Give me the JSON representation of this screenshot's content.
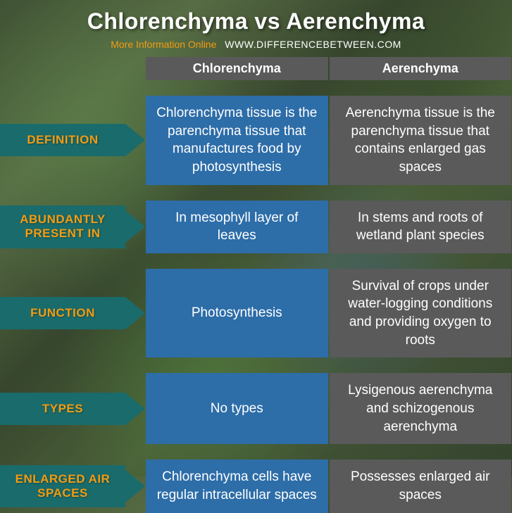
{
  "header": {
    "title": "Chlorenchyma vs Aerenchyma",
    "subtitle": "More Information Online",
    "url": "WWW.DIFFERENCEBETWEEN.COM"
  },
  "columns": {
    "col1": "Chlorenchyma",
    "col2": "Aerenchyma"
  },
  "colors": {
    "label_bg": "#1a6b6b",
    "label_text": "#f39c12",
    "col1_bg": "#2d6da8",
    "col2_bg": "#5a5a5a",
    "header_bg": "#5a5a5a"
  },
  "rows": [
    {
      "label": "DEFINITION",
      "col1": "Chlorenchyma tissue is the parenchyma tissue that manufactures food by photosynthesis",
      "col2": "Aerenchyma tissue is the parenchyma tissue that contains enlarged gas spaces"
    },
    {
      "label": "ABUNDANTLY PRESENT IN",
      "col1": "In mesophyll layer of leaves",
      "col2": "In stems and roots of wetland plant species"
    },
    {
      "label": "FUNCTION",
      "col1": "Photosynthesis",
      "col2": "Survival of crops under water-logging conditions and providing oxygen to roots"
    },
    {
      "label": "TYPES",
      "col1": "No types",
      "col2": "Lysigenous aerenchyma and schizogenous aerenchyma"
    },
    {
      "label": "ENLARGED AIR SPACES",
      "col1": "Chlorenchyma cells have regular intracellular spaces",
      "col2": "Possesses enlarged air spaces"
    }
  ]
}
